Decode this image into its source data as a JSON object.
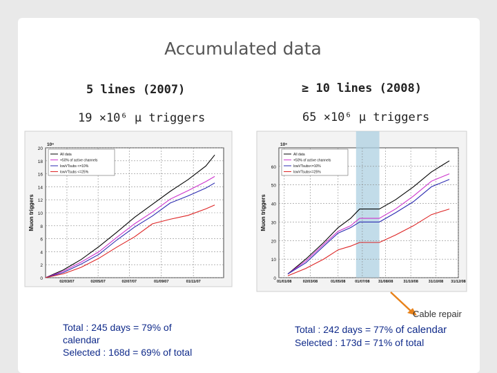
{
  "title": "Accumulated data",
  "left": {
    "heading": "5 lines (2007)",
    "triggers": "19 ×10⁶ μ triggers",
    "stats": [
      "Total : 245 days = 79% of calendar",
      "Selected : 168d = 69% of total"
    ]
  },
  "right": {
    "heading": "≥ 10 lines (2008)",
    "triggers": "65 ×10⁶ μ triggers",
    "stats": [
      "Total : 242 days = 77% ",
      "of calendar",
      "Selected : 173d = 71% of total"
    ]
  },
  "annotation": "Cable repair",
  "colors": {
    "all": "#000000",
    "active": "#cc33cc",
    "t1": "#2a2ab0",
    "t2": "#dd2222",
    "band": "#aed0e2",
    "arrow": "#e8821a"
  },
  "chart_data": [
    {
      "type": "line",
      "ylabel": "Muon triggers",
      "yexp": "10⁶",
      "ylim": [
        0,
        20
      ],
      "yticks": [
        0,
        2,
        4,
        6,
        8,
        10,
        12,
        14,
        16,
        18,
        20
      ],
      "xlim": [
        0,
        10
      ],
      "xtick_pos": [
        1.2,
        2.95,
        4.7,
        6.5,
        8.3
      ],
      "xtick_labels": [
        "02/03/07",
        "02/05/07",
        "02/07/07",
        "01/09/07",
        "01/11/07"
      ],
      "legend": [
        "All data",
        "+50% of active channels",
        "lowVTsubs <=10%",
        "lowVTsubs <=25%"
      ],
      "x": [
        0,
        1,
        2,
        3,
        4,
        5,
        6,
        7,
        8,
        9,
        9.5
      ],
      "series": [
        {
          "name": "All data",
          "color": "#000000",
          "values": [
            0,
            1.2,
            2.8,
            4.8,
            7.0,
            9.3,
            11.3,
            13.3,
            15.1,
            17.2,
            18.9
          ]
        },
        {
          "name": "+50% of active channels",
          "color": "#cc33cc",
          "values": [
            0,
            1.0,
            2.4,
            4.0,
            6.2,
            8.3,
            10.1,
            12.1,
            13.4,
            14.8,
            15.6
          ]
        },
        {
          "name": "lowVTsubs <=10%",
          "color": "#2a2ab0",
          "values": [
            0,
            0.8,
            2.1,
            3.6,
            5.8,
            7.8,
            9.5,
            11.5,
            12.6,
            13.8,
            14.6
          ]
        },
        {
          "name": "lowVTsubs <=25%",
          "color": "#dd2222",
          "values": [
            0,
            0.6,
            1.6,
            3.0,
            4.7,
            6.3,
            8.3,
            9.0,
            9.6,
            10.6,
            11.2
          ]
        }
      ]
    },
    {
      "type": "line",
      "ylabel": "Muon triggers",
      "yexp": "10⁶",
      "ylim": [
        0,
        70
      ],
      "yticks": [
        0,
        10,
        20,
        30,
        40,
        50,
        60
      ],
      "xlim": [
        0,
        10
      ],
      "xtick_pos": [
        0.3,
        1.75,
        3.3,
        4.65,
        5.95,
        7.35,
        8.75,
        10.0
      ],
      "xtick_labels": [
        "01/01/08",
        "02/03/08",
        "01/05/08",
        "01/07/08",
        "31/08/08",
        "31/10/08",
        "31/10/08",
        "31/12/08"
      ],
      "legend": [
        "All data",
        "+50% of active channels",
        "lowVTsubs<=10%",
        "lowVTsubs<=25%"
      ],
      "band": [
        4.3,
        5.6
      ],
      "x": [
        0.5,
        1.5,
        2.5,
        3.3,
        4.0,
        4.5,
        5.0,
        5.6,
        6.5,
        7.5,
        8.5,
        9.5
      ],
      "series": [
        {
          "name": "All data",
          "color": "#000000",
          "values": [
            2,
            10,
            19,
            27,
            32,
            37,
            37,
            37,
            42,
            49,
            57,
            63
          ]
        },
        {
          "name": "+50% of active channels",
          "color": "#cc33cc",
          "values": [
            2,
            9,
            18,
            25,
            28,
            32,
            32,
            32,
            37,
            44,
            52,
            56
          ]
        },
        {
          "name": "lowVTsubs<=10%",
          "color": "#2a2ab0",
          "values": [
            2,
            8,
            17,
            24,
            27,
            30,
            30,
            30,
            35,
            41,
            49,
            53
          ]
        },
        {
          "name": "lowVTsubs<=25%",
          "color": "#dd2222",
          "values": [
            1,
            5,
            10,
            15,
            17,
            19,
            19,
            19,
            23,
            28,
            34,
            37
          ]
        }
      ]
    }
  ]
}
